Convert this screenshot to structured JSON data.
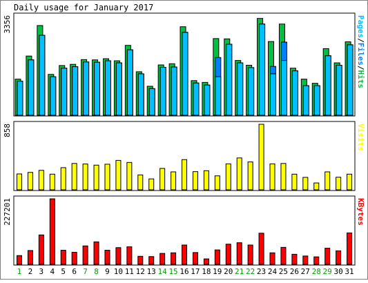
{
  "chart_data": {
    "type": "bar",
    "title": "Daily usage for January 2017",
    "categories": [
      "1",
      "2",
      "3",
      "4",
      "5",
      "6",
      "7",
      "8",
      "9",
      "10",
      "11",
      "12",
      "13",
      "14",
      "15",
      "16",
      "17",
      "18",
      "19",
      "20",
      "21",
      "22",
      "23",
      "24",
      "25",
      "26",
      "27",
      "28",
      "29",
      "30",
      "31"
    ],
    "weekend_days": [
      "1",
      "7",
      "8",
      "14",
      "15",
      "21",
      "22",
      "28",
      "29"
    ],
    "panels": [
      {
        "name": "hits-files-pages",
        "ymax_label": "3356",
        "ymax": 3356,
        "right_label": [
          "Pages",
          "/",
          "Files",
          "/",
          "Hits"
        ],
        "series": [
          {
            "name": "Hits",
            "color": "#00c040",
            "values": [
              1220,
              2000,
              3030,
              1380,
              1680,
              1720,
              1880,
              1870,
              1910,
              1840,
              2360,
              1470,
              980,
              1700,
              1740,
              2990,
              1170,
              1110,
              2590,
              2580,
              1850,
              1690,
              3270,
              2490,
              3080,
              1590,
              1220,
              1080,
              2250,
              1770,
              2480
            ]
          },
          {
            "name": "Files",
            "color": "#0080ff",
            "values": [
              1150,
              1870,
              2700,
              1300,
              1590,
              1640,
              1800,
              1790,
              1840,
              1770,
              2210,
              1400,
              900,
              1620,
              1630,
              2800,
              1090,
              1020,
              1950,
              2400,
              1770,
              1610,
              3080,
              1650,
              2470,
              1500,
              1000,
              1000,
              2010,
              1690,
              2380
            ]
          },
          {
            "name": "Pages",
            "color": "#00c0ff",
            "values": [
              1150,
              1870,
              2700,
              1300,
              1590,
              1640,
              1800,
              1790,
              1840,
              1770,
              2210,
              1400,
              900,
              1620,
              1630,
              2800,
              1090,
              1020,
              1300,
              2400,
              1770,
              1610,
              3080,
              1400,
              1850,
              1500,
              1000,
              1000,
              2010,
              1690,
              2380
            ]
          }
        ]
      },
      {
        "name": "visits",
        "ymax_label": "858",
        "ymax": 858,
        "right_label": [
          "Visits"
        ],
        "series": [
          {
            "name": "Visits",
            "color": "#ffff00",
            "values": [
              208,
              228,
              255,
              205,
              290,
              345,
              338,
              323,
              335,
              385,
              358,
              195,
              143,
              280,
              235,
              395,
              238,
              250,
              183,
              340,
              417,
              365,
              858,
              340,
              345,
              205,
              163,
              90,
              235,
              165,
              205
            ]
          }
        ]
      },
      {
        "name": "kbytes",
        "ymax_label": "227201",
        "ymax": 227201,
        "right_label": [
          "KBytes"
        ],
        "series": [
          {
            "name": "KBytes",
            "color": "#ff0000",
            "values": [
              30500,
              48000,
              102000,
              227201,
              49000,
              42000,
              64000,
              78000,
              49000,
              58000,
              61000,
              28000,
              27000,
              38000,
              40000,
              67000,
              41000,
              19000,
              50000,
              70000,
              75000,
              67000,
              108000,
              40000,
              59000,
              35000,
              29000,
              26000,
              56000,
              47000,
              109000
            ]
          }
        ]
      }
    ]
  }
}
